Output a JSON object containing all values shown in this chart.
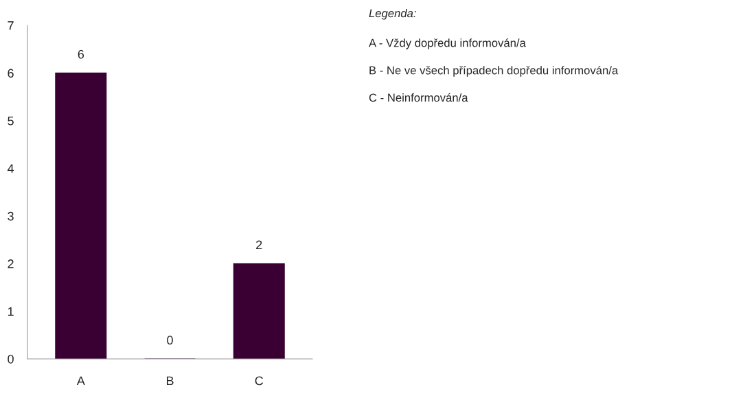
{
  "chart_data": {
    "type": "bar",
    "categories": [
      "A",
      "B",
      "C"
    ],
    "values": [
      6,
      0,
      2
    ],
    "color": "#3a0033",
    "ylim": [
      0,
      7
    ],
    "yticks": [
      0,
      1,
      2,
      3,
      4,
      5,
      6,
      7
    ],
    "data_labels": true,
    "grid": false,
    "annotations": [
      "Legenda:",
      "A - Vždy dopředu informován/a",
      "B - Ne ve všech případech dopředu informován/a",
      "C - Neinformován/a"
    ]
  }
}
